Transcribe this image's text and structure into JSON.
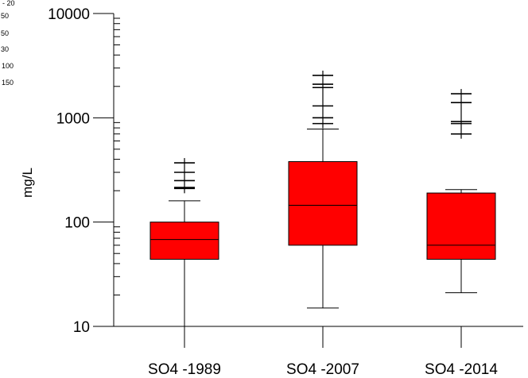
{
  "chart_data": {
    "type": "box",
    "ylabel": "mg/L",
    "yscale": "log",
    "ylim": [
      10,
      10000
    ],
    "y_tick_labels": [
      "10",
      "100",
      "1000",
      "10000"
    ],
    "y_tick_values": [
      10,
      100,
      1000,
      10000
    ],
    "box_color": "#ff0000",
    "categories": [
      "SO4 -1989",
      "SO4 -2007",
      "SO4 -2014"
    ],
    "boxes": [
      {
        "q1": 44,
        "median": 68,
        "q3": 100,
        "whisker_low": 10,
        "whisker_high": 160,
        "outliers": [
          210,
          215,
          250,
          300,
          370
        ]
      },
      {
        "q1": 60,
        "median": 145,
        "q3": 380,
        "whisker_low": 15,
        "whisker_high": 780,
        "outliers": [
          880,
          1000,
          1300,
          1950,
          2100,
          2550
        ]
      },
      {
        "q1": 44,
        "median": 60,
        "q3": 190,
        "whisker_low": 21,
        "whisker_high": 205,
        "outliers": [
          700,
          880,
          920,
          1400,
          1700
        ]
      }
    ]
  },
  "legend_fragment": {
    "lines": [
      "- 20",
      "50",
      "50",
      "30",
      "100",
      "150"
    ]
  }
}
